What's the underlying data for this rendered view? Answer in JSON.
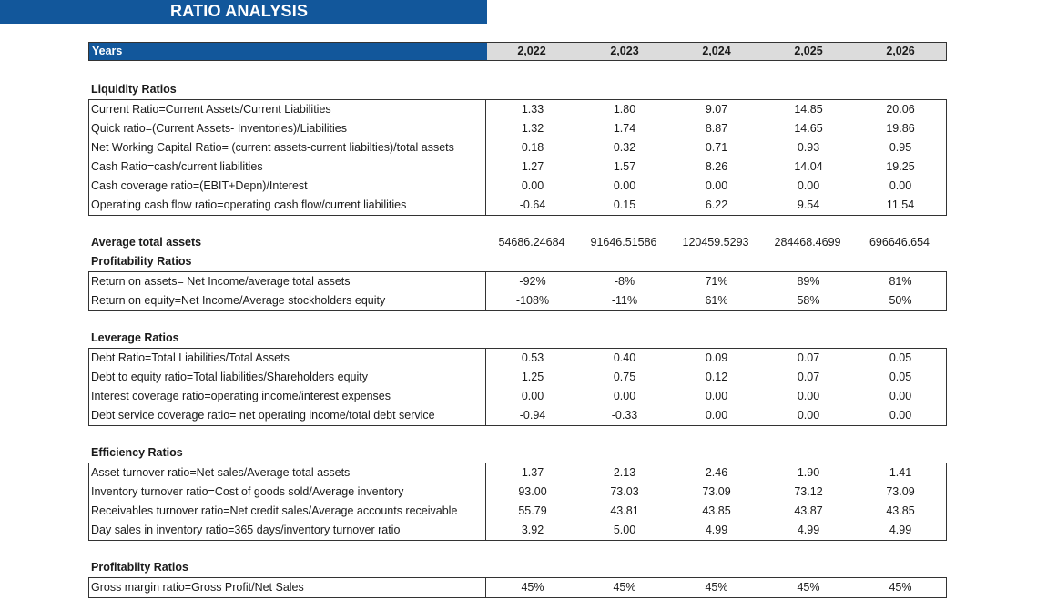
{
  "title": "RATIO ANALYSIS",
  "years": {
    "label": "Years",
    "values": [
      "2,022",
      "2,023",
      "2,024",
      "2,025",
      "2,026"
    ]
  },
  "liquidity": {
    "title": "Liquidity Ratios",
    "rows": [
      {
        "label": "Current Ratio=Current Assets/Current Liabilities",
        "values": [
          "1.33",
          "1.80",
          "9.07",
          "14.85",
          "20.06"
        ]
      },
      {
        "label": "Quick ratio=(Current Assets- Inventories)/Liabilities",
        "values": [
          "1.32",
          "1.74",
          "8.87",
          "14.65",
          "19.86"
        ]
      },
      {
        "label": "Net Working Capital Ratio= (current assets-current liabilties)/total assets",
        "values": [
          "0.18",
          "0.32",
          "0.71",
          "0.93",
          "0.95"
        ]
      },
      {
        "label": "Cash Ratio=cash/current liabilities",
        "values": [
          "1.27",
          "1.57",
          "8.26",
          "14.04",
          "19.25"
        ]
      },
      {
        "label": "Cash coverage ratio=(EBIT+Depn)/Interest",
        "values": [
          "0.00",
          "0.00",
          "0.00",
          "0.00",
          "0.00"
        ]
      },
      {
        "label": "Operating cash flow ratio=operating cash flow/current liabilities",
        "values": [
          "-0.64",
          "0.15",
          "6.22",
          "9.54",
          "11.54"
        ]
      }
    ]
  },
  "average_total_assets": {
    "label": "Average total assets",
    "values": [
      "54686.24684",
      "91646.51586",
      "120459.5293",
      "284468.4699",
      "696646.654"
    ]
  },
  "profitability": {
    "title": "Profitability Ratios",
    "rows": [
      {
        "label": "Return on assets= Net Income/average total assets",
        "values": [
          "-92%",
          "-8%",
          "71%",
          "89%",
          "81%"
        ]
      },
      {
        "label": "Return on equity=Net Income/Average stockholders equity",
        "values": [
          "-108%",
          "-11%",
          "61%",
          "58%",
          "50%"
        ]
      }
    ]
  },
  "leverage": {
    "title": "Leverage Ratios",
    "rows": [
      {
        "label": "Debt Ratio=Total Liabilities/Total Assets",
        "values": [
          "0.53",
          "0.40",
          "0.09",
          "0.07",
          "0.05"
        ]
      },
      {
        "label": "Debt to equity ratio=Total liabilities/Shareholders equity",
        "values": [
          "1.25",
          "0.75",
          "0.12",
          "0.07",
          "0.05"
        ]
      },
      {
        "label": "Interest coverage ratio=operating income/interest expenses",
        "values": [
          "0.00",
          "0.00",
          "0.00",
          "0.00",
          "0.00"
        ]
      },
      {
        "label": "Debt service coverage ratio= net operating income/total debt service",
        "values": [
          "-0.94",
          "-0.33",
          "0.00",
          "0.00",
          "0.00"
        ]
      }
    ]
  },
  "efficiency": {
    "title": "Efficiency Ratios",
    "rows": [
      {
        "label": "Asset turnover ratio=Net sales/Average total assets",
        "values": [
          "1.37",
          "2.13",
          "2.46",
          "1.90",
          "1.41"
        ]
      },
      {
        "label": "Inventory turnover ratio=Cost of goods sold/Average inventory",
        "values": [
          "93.00",
          "73.03",
          "73.09",
          "73.12",
          "73.09"
        ]
      },
      {
        "label": "Receivables turnover ratio=Net credit sales/Average accounts receivable",
        "values": [
          "55.79",
          "43.81",
          "43.85",
          "43.87",
          "43.85"
        ]
      },
      {
        "label": "Day sales in inventory ratio=365 days/inventory turnover ratio",
        "values": [
          "3.92",
          "5.00",
          "4.99",
          "4.99",
          "4.99"
        ]
      }
    ]
  },
  "profitability2": {
    "title": "Profitabilty Ratios",
    "rows": [
      {
        "label": "Gross margin ratio=Gross Profit/Net Sales",
        "values": [
          "45%",
          "45%",
          "45%",
          "45%",
          "45%"
        ]
      }
    ]
  }
}
